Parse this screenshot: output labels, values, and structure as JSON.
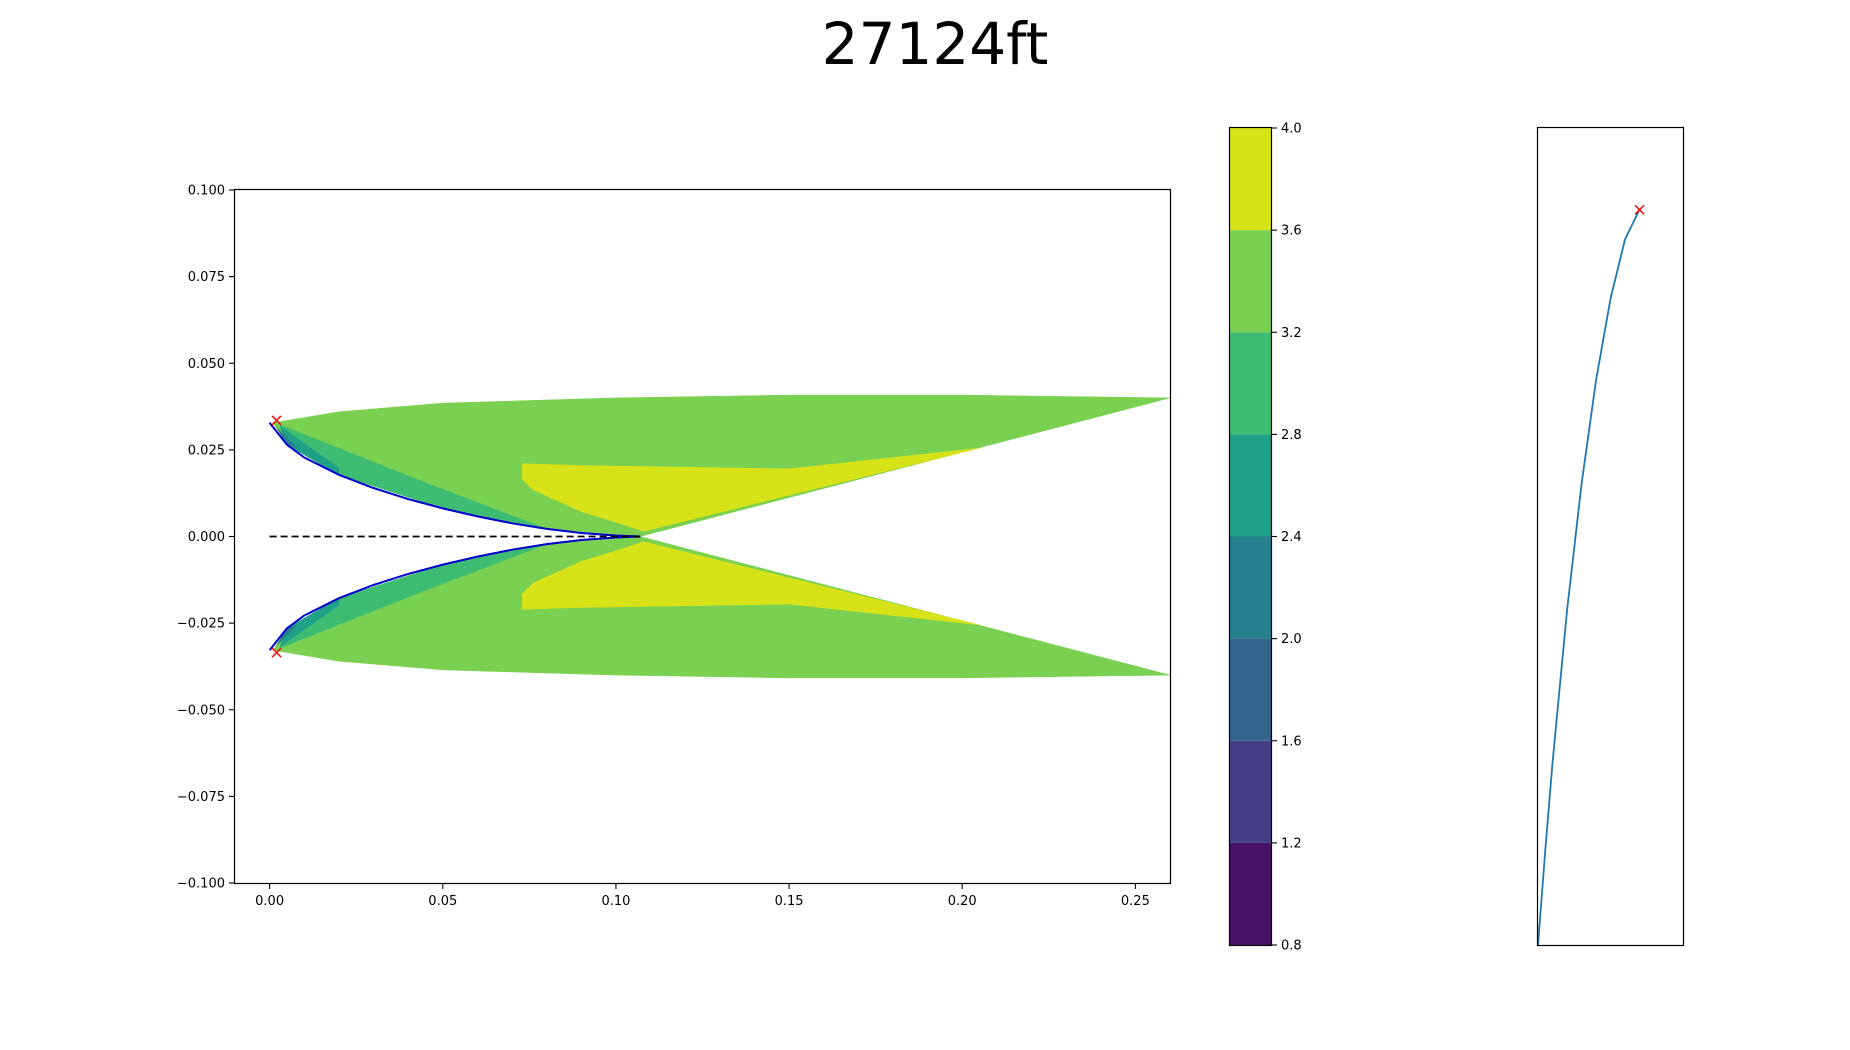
{
  "title": "27124ft",
  "chart_data": [
    {
      "type": "contour",
      "panel": "main",
      "xlim": [
        -0.01,
        0.26
      ],
      "ylim": [
        -0.1,
        0.1
      ],
      "xticks": [
        0.0,
        0.05,
        0.1,
        0.15,
        0.2,
        0.25
      ],
      "xtick_labels": [
        "0.00",
        "0.05",
        "0.10",
        "0.15",
        "0.20",
        "0.25"
      ],
      "yticks": [
        0.1,
        0.075,
        0.05,
        0.025,
        0.0,
        -0.025,
        -0.05,
        -0.075,
        -0.1
      ],
      "ytick_labels": [
        "0.100",
        "0.075",
        "0.050",
        "0.025",
        "0.000",
        "−0.025",
        "−0.050",
        "−0.075",
        "−0.100"
      ],
      "grid": false,
      "body_outline_color": "#0000cc",
      "centerline": {
        "x": [
          0.0,
          0.107
        ],
        "y": 0.0,
        "style": "dashed",
        "color": "#000000"
      },
      "body_upper": [
        [
          0.0,
          0.0328
        ],
        [
          0.005,
          0.0265
        ],
        [
          0.01,
          0.0228
        ],
        [
          0.02,
          0.0178
        ],
        [
          0.03,
          0.014
        ],
        [
          0.04,
          0.0108
        ],
        [
          0.05,
          0.0081
        ],
        [
          0.06,
          0.0058
        ],
        [
          0.07,
          0.0038
        ],
        [
          0.08,
          0.0022
        ],
        [
          0.09,
          0.001
        ],
        [
          0.1,
          0.0003
        ],
        [
          0.107,
          0.0
        ]
      ],
      "markers": [
        {
          "x": 0.002,
          "y": 0.0335,
          "symbol": "x",
          "color": "#ff0000"
        },
        {
          "x": 0.002,
          "y": -0.0335,
          "symbol": "x",
          "color": "#ff0000"
        }
      ],
      "regions": [
        {
          "level": "3.2-3.6",
          "color": "#7ad151",
          "polygon": [
            [
              0.001,
              0.0328
            ],
            [
              0.02,
              0.036
            ],
            [
              0.05,
              0.0385
            ],
            [
              0.1,
              0.04
            ],
            [
              0.15,
              0.0408
            ],
            [
              0.2,
              0.0408
            ],
            [
              0.26,
              0.04
            ],
            [
              0.107,
              0.0
            ],
            [
              0.08,
              0.0022
            ],
            [
              0.05,
              0.0081
            ],
            [
              0.02,
              0.0178
            ],
            [
              0.005,
              0.0265
            ]
          ]
        },
        {
          "level": "2.8-3.2",
          "color": "#3fbc73",
          "polygon": [
            [
              0.003,
              0.0322
            ],
            [
              0.045,
              0.0155
            ],
            [
              0.08,
              0.0022
            ],
            [
              0.05,
              0.0081
            ],
            [
              0.02,
              0.0178
            ],
            [
              0.005,
              0.0265
            ]
          ]
        },
        {
          "level": "2.4-2.8",
          "color": "#1fa187",
          "polygon": [
            [
              0.003,
              0.0318
            ],
            [
              0.02,
              0.0198
            ],
            [
              0.02,
              0.0178
            ],
            [
              0.005,
              0.0265
            ]
          ]
        },
        {
          "level": "2.0-2.4",
          "color": "#277f8e",
          "polygon": [
            [
              0.002,
              0.0315
            ],
            [
              0.008,
              0.0255
            ],
            [
              0.005,
              0.0265
            ]
          ]
        },
        {
          "level": "3.6-4.0",
          "color": "#d8e219",
          "polygon": [
            [
              0.073,
              0.021
            ],
            [
              0.09,
              0.0205
            ],
            [
              0.15,
              0.0195
            ],
            [
              0.205,
              0.0255
            ],
            [
              0.108,
              0.0015
            ],
            [
              0.103,
              0.0032
            ],
            [
              0.09,
              0.0072
            ],
            [
              0.076,
              0.0135
            ],
            [
              0.073,
              0.0165
            ]
          ]
        }
      ],
      "symmetric_about_y0": true
    },
    {
      "type": "colorbar",
      "levels": [
        0.8,
        1.2,
        1.6,
        2.0,
        2.4,
        2.8,
        3.2,
        3.6,
        4.0
      ],
      "tick_labels": [
        "0.8",
        "1.2",
        "1.6",
        "2.0",
        "2.4",
        "2.8",
        "3.2",
        "3.6",
        "4.0"
      ],
      "colors": [
        "#471164",
        "#433e85",
        "#32648e",
        "#27808e",
        "#1fa187",
        "#3fbc73",
        "#7ad151",
        "#d8e219"
      ]
    },
    {
      "type": "line",
      "panel": "inset",
      "x": [
        0.0,
        0.05,
        0.1,
        0.2,
        0.3,
        0.4,
        0.5,
        0.6,
        0.7
      ],
      "y": [
        0.0,
        0.128,
        0.245,
        0.45,
        0.62,
        0.76,
        0.87,
        0.95,
        0.99
      ],
      "xlim": [
        0.0,
        1.0
      ],
      "ylim": [
        0.0,
        1.1
      ],
      "line_color": "#1f77b4",
      "marker": {
        "x": 0.7,
        "y": 0.99,
        "symbol": "x",
        "color": "#ff0000"
      }
    }
  ]
}
